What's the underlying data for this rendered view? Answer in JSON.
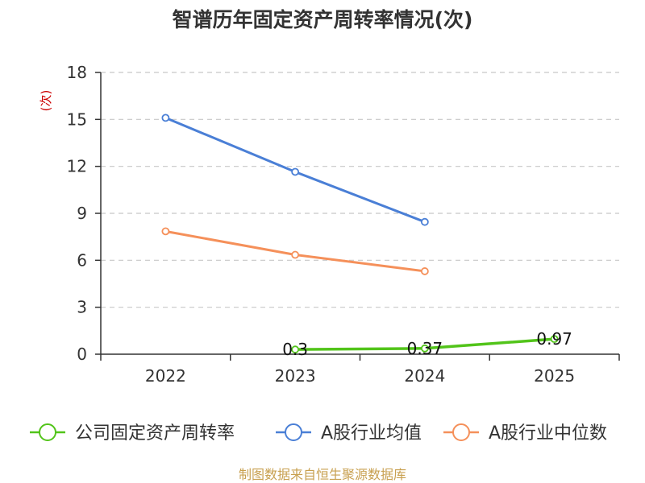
{
  "chart_data": {
    "type": "line",
    "title": "智谱历年固定资产周转率情况(次)",
    "ylabel": "(次)",
    "xlabel": "",
    "categories": [
      "2022",
      "2023",
      "2024",
      "2025"
    ],
    "ylim": [
      0,
      18
    ],
    "yticks": [
      0,
      3,
      6,
      9,
      12,
      15,
      18
    ],
    "grid": true,
    "legend_position": "bottom",
    "series": [
      {
        "name": "公司固定资产周转率",
        "color": "#52c41a",
        "values": [
          null,
          0.3,
          0.37,
          0.97
        ],
        "labels": [
          null,
          "0.3",
          "0.37",
          "0.97"
        ]
      },
      {
        "name": "A股行业均值",
        "color": "#4a7fd6",
        "values": [
          15.1,
          11.65,
          8.45,
          null
        ]
      },
      {
        "name": "A股行业中位数",
        "color": "#f5905a",
        "values": [
          7.85,
          6.35,
          5.3,
          null
        ]
      }
    ],
    "source": "制图数据来自恒生聚源数据库"
  }
}
